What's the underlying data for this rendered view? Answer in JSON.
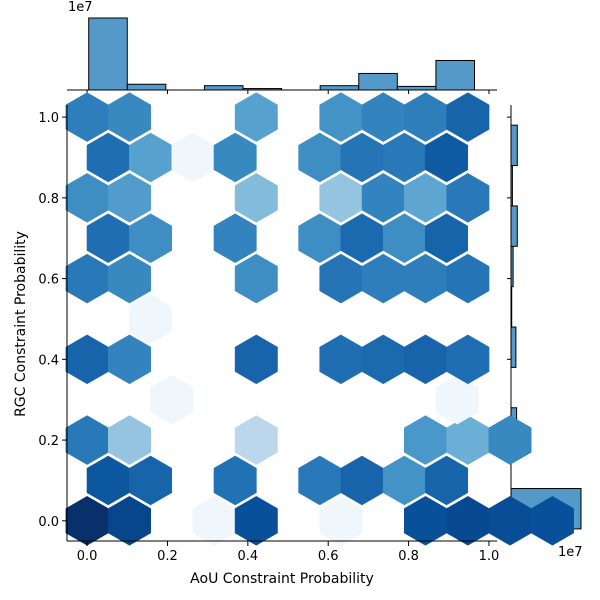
{
  "chart_data": [
    {
      "type": "hexbin",
      "xlabel": "AoU Constraint Probability",
      "ylabel": "RGC Constraint Probability",
      "xlim": [
        -0.05,
        1.02
      ],
      "ylim": [
        -0.05,
        1.03
      ],
      "xticks": [
        "0.0",
        "0.2",
        "0.4",
        "0.6",
        "0.8",
        "1.0"
      ],
      "xtick_values": [
        0.0,
        0.2,
        0.4,
        0.6,
        0.8,
        1.0
      ],
      "yticks": [
        "0.0",
        "0.2",
        "0.4",
        "0.6",
        "0.8",
        "1.0"
      ],
      "ytick_values": [
        0.0,
        0.2,
        0.4,
        0.6,
        0.8,
        1.0
      ],
      "colormap": "Blues",
      "color_scale_note": "cell intensity 0 (lightest) to 1 (darkest)",
      "hex_cells": [
        {
          "x": 0.0,
          "y": 0.0,
          "intensity": 1.0
        },
        {
          "x": 0.211,
          "y": 0.0,
          "intensity": 0.92
        },
        {
          "x": 0.632,
          "y": 0.0,
          "intensity": 0.04
        },
        {
          "x": 0.842,
          "y": 0.0,
          "intensity": 0.88
        },
        {
          "x": 1.263,
          "y": 0.0,
          "intensity": 0.04
        },
        {
          "x": 1.684,
          "y": 0.0,
          "intensity": 0.88
        },
        {
          "x": 1.895,
          "y": 0.0,
          "intensity": 0.9
        },
        {
          "x": 2.105,
          "y": 0.0,
          "intensity": 0.89
        },
        {
          "x": 2.316,
          "y": 0.0,
          "intensity": 0.88
        },
        {
          "x": 0.105,
          "y": 0.1,
          "intensity": 0.85
        },
        {
          "x": 0.316,
          "y": 0.1,
          "intensity": 0.8
        },
        {
          "x": 0.737,
          "y": 0.1,
          "intensity": 0.75
        },
        {
          "x": 1.158,
          "y": 0.1,
          "intensity": 0.72
        },
        {
          "x": 1.368,
          "y": 0.1,
          "intensity": 0.8
        },
        {
          "x": 1.579,
          "y": 0.1,
          "intensity": 0.62
        },
        {
          "x": 1.789,
          "y": 0.1,
          "intensity": 0.8
        },
        {
          "x": 0.0,
          "y": 0.2,
          "intensity": 0.72
        },
        {
          "x": 0.211,
          "y": 0.2,
          "intensity": 0.4
        },
        {
          "x": 0.842,
          "y": 0.2,
          "intensity": 0.28
        },
        {
          "x": 1.684,
          "y": 0.2,
          "intensity": 0.6
        },
        {
          "x": 1.895,
          "y": 0.2,
          "intensity": 0.5
        },
        {
          "x": 2.105,
          "y": 0.2,
          "intensity": 0.66
        },
        {
          "x": 0.421,
          "y": 0.3,
          "intensity": 0.04
        },
        {
          "x": 1.842,
          "y": 0.3,
          "intensity": 0.04
        },
        {
          "x": 0.0,
          "y": 0.4,
          "intensity": 0.8
        },
        {
          "x": 0.211,
          "y": 0.4,
          "intensity": 0.68
        },
        {
          "x": 0.842,
          "y": 0.4,
          "intensity": 0.8
        },
        {
          "x": 1.263,
          "y": 0.4,
          "intensity": 0.76
        },
        {
          "x": 1.474,
          "y": 0.4,
          "intensity": 0.78
        },
        {
          "x": 1.684,
          "y": 0.4,
          "intensity": 0.8
        },
        {
          "x": 1.895,
          "y": 0.4,
          "intensity": 0.76
        },
        {
          "x": 0.316,
          "y": 0.5,
          "intensity": 0.04
        },
        {
          "x": 0.0,
          "y": 0.6,
          "intensity": 0.72
        },
        {
          "x": 0.211,
          "y": 0.6,
          "intensity": 0.66
        },
        {
          "x": 0.842,
          "y": 0.6,
          "intensity": 0.64
        },
        {
          "x": 1.263,
          "y": 0.6,
          "intensity": 0.74
        },
        {
          "x": 1.474,
          "y": 0.6,
          "intensity": 0.7
        },
        {
          "x": 1.684,
          "y": 0.6,
          "intensity": 0.7
        },
        {
          "x": 1.895,
          "y": 0.6,
          "intensity": 0.74
        },
        {
          "x": 0.105,
          "y": 0.7,
          "intensity": 0.76
        },
        {
          "x": 0.316,
          "y": 0.7,
          "intensity": 0.64
        },
        {
          "x": 0.737,
          "y": 0.7,
          "intensity": 0.68
        },
        {
          "x": 1.158,
          "y": 0.7,
          "intensity": 0.64
        },
        {
          "x": 1.368,
          "y": 0.7,
          "intensity": 0.78
        },
        {
          "x": 1.579,
          "y": 0.7,
          "intensity": 0.64
        },
        {
          "x": 1.789,
          "y": 0.7,
          "intensity": 0.8
        },
        {
          "x": 0.0,
          "y": 0.8,
          "intensity": 0.64
        },
        {
          "x": 0.211,
          "y": 0.8,
          "intensity": 0.58
        },
        {
          "x": 0.842,
          "y": 0.8,
          "intensity": 0.44
        },
        {
          "x": 1.263,
          "y": 0.8,
          "intensity": 0.4
        },
        {
          "x": 1.474,
          "y": 0.8,
          "intensity": 0.68
        },
        {
          "x": 1.684,
          "y": 0.8,
          "intensity": 0.54
        },
        {
          "x": 1.895,
          "y": 0.8,
          "intensity": 0.72
        },
        {
          "x": 0.105,
          "y": 0.9,
          "intensity": 0.76
        },
        {
          "x": 0.316,
          "y": 0.9,
          "intensity": 0.56
        },
        {
          "x": 0.527,
          "y": 0.9,
          "intensity": 0.04
        },
        {
          "x": 0.737,
          "y": 0.9,
          "intensity": 0.66
        },
        {
          "x": 1.158,
          "y": 0.9,
          "intensity": 0.64
        },
        {
          "x": 1.368,
          "y": 0.9,
          "intensity": 0.74
        },
        {
          "x": 1.579,
          "y": 0.9,
          "intensity": 0.72
        },
        {
          "x": 1.789,
          "y": 0.9,
          "intensity": 0.84
        },
        {
          "x": 0.0,
          "y": 1.0,
          "intensity": 0.7
        },
        {
          "x": 0.211,
          "y": 1.0,
          "intensity": 0.66
        },
        {
          "x": 0.842,
          "y": 1.0,
          "intensity": 0.56
        },
        {
          "x": 1.263,
          "y": 1.0,
          "intensity": 0.62
        },
        {
          "x": 1.474,
          "y": 1.0,
          "intensity": 0.68
        },
        {
          "x": 1.684,
          "y": 1.0,
          "intensity": 0.7
        },
        {
          "x": 1.895,
          "y": 1.0,
          "intensity": 0.8
        }
      ],
      "hex_cell_units": "x stored as doubled AoU coordinate (x/2 = AoU probability); y = RGC probability"
    },
    {
      "type": "bar",
      "role": "top marginal histogram (AoU Constraint Probability)",
      "bins": [
        {
          "x0": 0.0,
          "x1": 0.1,
          "value": 1.0
        },
        {
          "x0": 0.1,
          "x1": 0.2,
          "value": 0.08
        },
        {
          "x0": 0.2,
          "x1": 0.3,
          "value": 0.0
        },
        {
          "x0": 0.3,
          "x1": 0.4,
          "value": 0.06
        },
        {
          "x0": 0.4,
          "x1": 0.5,
          "value": 0.02
        },
        {
          "x0": 0.5,
          "x1": 0.6,
          "value": 0.0
        },
        {
          "x0": 0.6,
          "x1": 0.7,
          "value": 0.06
        },
        {
          "x0": 0.7,
          "x1": 0.8,
          "value": 0.23
        },
        {
          "x0": 0.8,
          "x1": 0.9,
          "value": 0.05
        },
        {
          "x0": 0.9,
          "x1": 1.0,
          "value": 0.41
        }
      ],
      "ylim": [
        0,
        1.0
      ],
      "scale_label": "1e7"
    },
    {
      "type": "bar",
      "orientation": "horizontal",
      "role": "right marginal histogram (RGC Constraint Probability)",
      "bins": [
        {
          "y0": 0.0,
          "y1": 0.1,
          "value": 1.0
        },
        {
          "y0": 0.1,
          "y1": 0.2,
          "value": 0.0
        },
        {
          "y0": 0.2,
          "y1": 0.3,
          "value": 0.08
        },
        {
          "y0": 0.3,
          "y1": 0.4,
          "value": 0.0
        },
        {
          "y0": 0.4,
          "y1": 0.5,
          "value": 0.07
        },
        {
          "y0": 0.5,
          "y1": 0.6,
          "value": 0.01
        },
        {
          "y0": 0.6,
          "y1": 0.7,
          "value": 0.03
        },
        {
          "y0": 0.7,
          "y1": 0.8,
          "value": 0.09
        },
        {
          "y0": 0.8,
          "y1": 0.9,
          "value": 0.02
        },
        {
          "y0": 0.9,
          "y1": 1.0,
          "value": 0.09
        }
      ],
      "xlim": [
        0,
        1.0
      ],
      "scale_label": "1e7"
    }
  ],
  "colors": {
    "hist_fill": "#5499c7",
    "hist_edge": "#000000",
    "axis": "#000000",
    "background": "#ffffff"
  }
}
